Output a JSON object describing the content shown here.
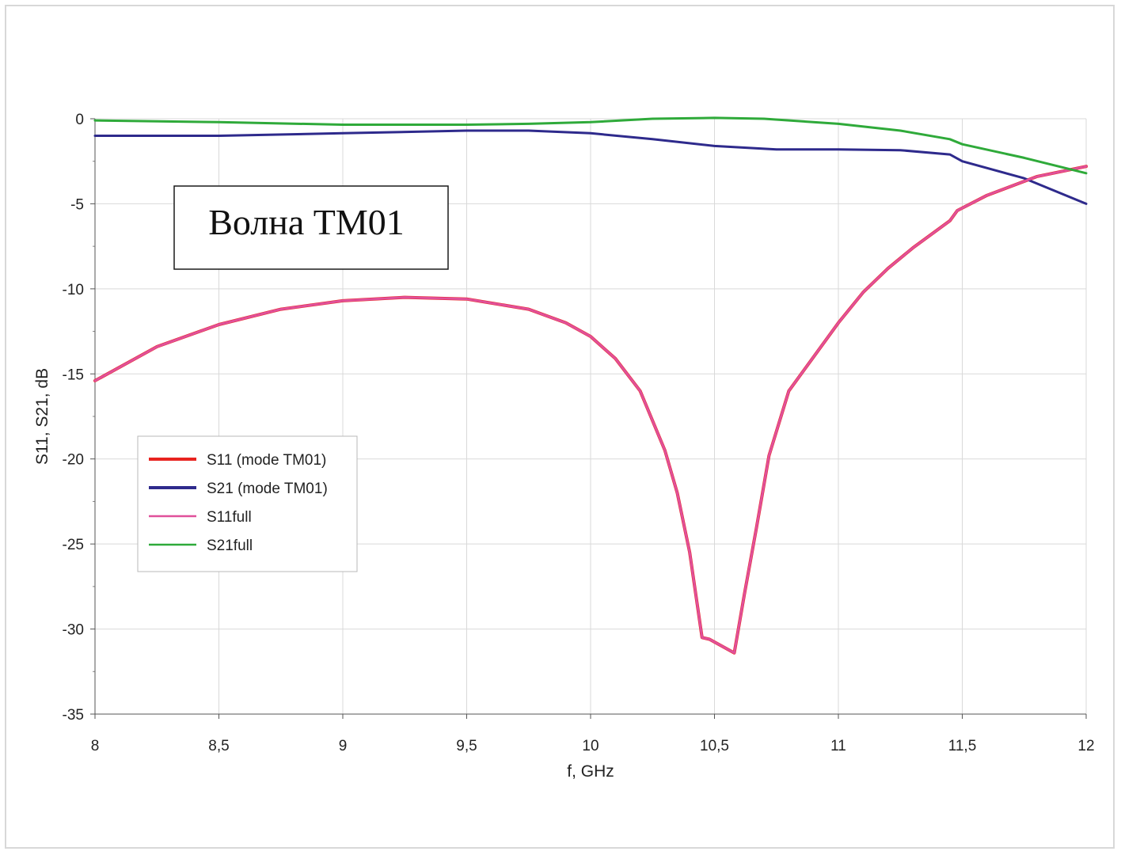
{
  "chart_data": {
    "type": "line",
    "title": "",
    "xlabel": "f, GHz",
    "ylabel": "S11, S21, dB",
    "xlim": [
      8,
      12
    ],
    "ylim": [
      -35,
      0
    ],
    "grid": true,
    "legend_position": "left-middle",
    "annotation": "Волна TM01",
    "x_ticks": [
      "8",
      "8,5",
      "9",
      "9,5",
      "10",
      "10,5",
      "11",
      "11,5",
      "12"
    ],
    "y_ticks": [
      "0",
      "-5",
      "-10",
      "-15",
      "-20",
      "-25",
      "-30",
      "-35"
    ],
    "series": [
      {
        "name": "S11 (mode TM01)",
        "color": "#e8231f",
        "x": [
          8.0,
          8.25,
          8.5,
          8.75,
          9.0,
          9.25,
          9.5,
          9.75,
          9.9,
          10.0,
          10.1,
          10.2,
          10.3,
          10.35,
          10.4,
          10.45,
          10.48,
          10.58,
          10.62,
          10.67,
          10.72,
          10.8,
          10.9,
          11.0,
          11.1,
          11.2,
          11.3,
          11.45,
          11.48,
          11.6,
          11.8,
          12.0
        ],
        "y": [
          -15.4,
          -13.4,
          -12.1,
          -11.2,
          -10.7,
          -10.5,
          -10.6,
          -11.2,
          -12.0,
          -12.8,
          -14.1,
          -16.0,
          -19.5,
          -22.0,
          -25.5,
          -30.5,
          -30.6,
          -31.4,
          -28.0,
          -24.0,
          -19.8,
          -16.0,
          -14.0,
          -12.0,
          -10.2,
          -8.8,
          -7.6,
          -6.0,
          -5.4,
          -4.5,
          -3.4,
          -2.8
        ]
      },
      {
        "name": "S21 (mode TM01)",
        "color": "#2e2a8c",
        "x": [
          8.0,
          8.5,
          9.0,
          9.5,
          9.75,
          10.0,
          10.25,
          10.5,
          10.75,
          11.0,
          11.25,
          11.45,
          11.5,
          11.75,
          12.0
        ],
        "y": [
          -1.0,
          -1.0,
          -0.85,
          -0.7,
          -0.7,
          -0.85,
          -1.2,
          -1.6,
          -1.8,
          -1.8,
          -1.85,
          -2.1,
          -2.5,
          -3.5,
          -5.0
        ]
      },
      {
        "name": "S11full",
        "color": "#e0509a",
        "x": [
          8.0,
          8.25,
          8.5,
          8.75,
          9.0,
          9.25,
          9.5,
          9.75,
          9.9,
          10.0,
          10.1,
          10.2,
          10.3,
          10.35,
          10.4,
          10.45,
          10.48,
          10.58,
          10.62,
          10.67,
          10.72,
          10.8,
          10.9,
          11.0,
          11.1,
          11.2,
          11.3,
          11.45,
          11.48,
          11.6,
          11.8,
          12.0
        ],
        "y": [
          -15.4,
          -13.4,
          -12.1,
          -11.2,
          -10.7,
          -10.5,
          -10.6,
          -11.2,
          -12.0,
          -12.8,
          -14.1,
          -16.0,
          -19.5,
          -22.0,
          -25.5,
          -30.5,
          -30.6,
          -31.4,
          -28.0,
          -24.0,
          -19.8,
          -16.0,
          -14.0,
          -12.0,
          -10.2,
          -8.8,
          -7.6,
          -6.0,
          -5.4,
          -4.5,
          -3.4,
          -2.8
        ]
      },
      {
        "name": "S21full",
        "color": "#2faa3a",
        "x": [
          8.0,
          8.5,
          9.0,
          9.5,
          9.75,
          10.0,
          10.25,
          10.5,
          10.7,
          11.0,
          11.25,
          11.45,
          11.5,
          11.75,
          12.0
        ],
        "y": [
          -0.1,
          -0.2,
          -0.35,
          -0.35,
          -0.3,
          -0.2,
          0.0,
          0.05,
          0.0,
          -0.3,
          -0.7,
          -1.2,
          -1.5,
          -2.3,
          -3.2
        ]
      }
    ]
  }
}
